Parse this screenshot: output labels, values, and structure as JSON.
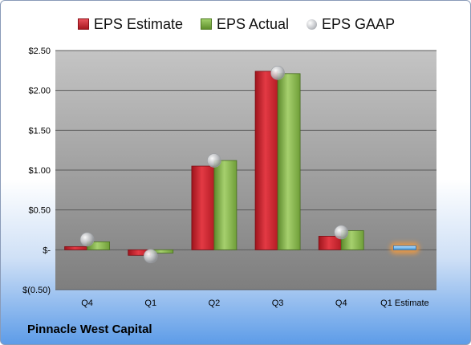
{
  "company": "Pinnacle West Capital",
  "legend": [
    {
      "label": "EPS Estimate",
      "key": "estimate",
      "color": "#c0202a"
    },
    {
      "label": "EPS Actual",
      "key": "actual",
      "color": "#7fae45"
    },
    {
      "label": "EPS GAAP",
      "key": "gaap",
      "color": "#c6c8cc"
    }
  ],
  "chart_data": {
    "type": "bar",
    "categories": [
      "Q4",
      "Q1",
      "Q2",
      "Q3",
      "Q4",
      "Q1 Estimate"
    ],
    "series": [
      {
        "name": "EPS Estimate",
        "values": [
          0.04,
          -0.07,
          1.05,
          2.24,
          0.17,
          0.05
        ]
      },
      {
        "name": "EPS Actual",
        "values": [
          0.1,
          -0.04,
          1.12,
          2.21,
          0.24,
          null
        ]
      },
      {
        "name": "EPS GAAP",
        "values": [
          0.13,
          -0.08,
          1.12,
          2.22,
          0.22,
          null
        ]
      }
    ],
    "ylim": [
      -0.5,
      2.5
    ],
    "y_ticks": [
      {
        "value": 2.5,
        "label": "$2.50"
      },
      {
        "value": 2.0,
        "label": "$2.00"
      },
      {
        "value": 1.5,
        "label": "$1.50"
      },
      {
        "value": 1.0,
        "label": "$1.00"
      },
      {
        "value": 0.5,
        "label": "$0.50"
      },
      {
        "value": 0.0,
        "label": "$-"
      },
      {
        "value": -0.5,
        "label": "$(0.50)"
      }
    ],
    "grid": true,
    "legend_position": "top"
  }
}
